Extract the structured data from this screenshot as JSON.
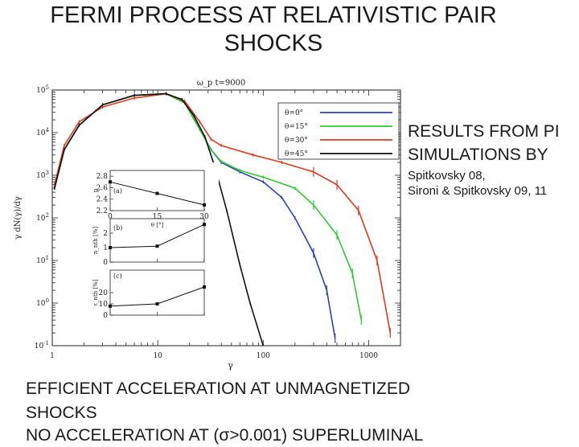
{
  "slide": {
    "title_line1": "FERMI PROCESS AT RELATIVISTIC PAIR",
    "title_line2": "SHOCKS",
    "side_line1": "RESULTS FROM PI",
    "side_line2": "SIMULATIONS BY",
    "side_line3": "Spitkovsky 08,",
    "side_line4": "Sironi & Spitkovsky 09, 11",
    "bottom_line1": "EFFICIENT ACCELERATION AT UNMAGNETIZED",
    "bottom_line2": "SHOCKS",
    "bottom_line3": "NO ACCELERATION AT (σ>0.001) SUPERLUMINAL"
  },
  "chart_data": [
    {
      "type": "line",
      "title": "ω_p t=9000",
      "xlabel": "γ",
      "ylabel": "γ dN(γ)/dγ",
      "xscale": "log",
      "yscale": "log",
      "xlim": [
        1,
        2000
      ],
      "ylim": [
        0.1,
        100000
      ],
      "x_ticks": [
        "1",
        "10",
        "100",
        "1000"
      ],
      "y_ticks": [
        "10^-1",
        "10^0",
        "10^1",
        "10^2",
        "10^3",
        "10^4",
        "10^5"
      ],
      "legend_position": "top-right",
      "series": [
        {
          "name": "θ=0°",
          "color": "#2b3fbf",
          "points": [
            [
              1.05,
              500
            ],
            [
              1.3,
              4000
            ],
            [
              1.8,
              15000
            ],
            [
              3,
              45000
            ],
            [
              6,
              75000
            ],
            [
              12,
              82000
            ],
            [
              18,
              50000
            ],
            [
              25,
              12000
            ],
            [
              32,
              4000
            ],
            [
              40,
              2000
            ],
            [
              60,
              1200
            ],
            [
              100,
              700
            ],
            [
              150,
              300
            ],
            [
              200,
              100
            ],
            [
              300,
              15
            ],
            [
              400,
              2
            ],
            [
              480,
              0.15
            ]
          ]
        },
        {
          "name": "θ=15°",
          "color": "#2ec92e",
          "points": [
            [
              1.05,
              500
            ],
            [
              1.3,
              4000
            ],
            [
              1.8,
              15000
            ],
            [
              3,
              45000
            ],
            [
              6,
              75000
            ],
            [
              12,
              82000
            ],
            [
              18,
              50000
            ],
            [
              25,
              12000
            ],
            [
              32,
              4000
            ],
            [
              40,
              2100
            ],
            [
              60,
              1300
            ],
            [
              100,
              900
            ],
            [
              200,
              500
            ],
            [
              300,
              200
            ],
            [
              500,
              40
            ],
            [
              700,
              5
            ],
            [
              850,
              0.4
            ]
          ]
        },
        {
          "name": "θ=30°",
          "color": "#e03a1c",
          "points": [
            [
              1.05,
              600
            ],
            [
              1.3,
              5000
            ],
            [
              1.8,
              18000
            ],
            [
              3,
              40000
            ],
            [
              6,
              65000
            ],
            [
              12,
              82000
            ],
            [
              18,
              55000
            ],
            [
              25,
              18000
            ],
            [
              32,
              7000
            ],
            [
              40,
              5000
            ],
            [
              80,
              3000
            ],
            [
              150,
              2000
            ],
            [
              300,
              1200
            ],
            [
              500,
              600
            ],
            [
              800,
              150
            ],
            [
              1200,
              10
            ],
            [
              1600,
              0.2
            ]
          ]
        },
        {
          "name": "θ=45°",
          "color": "#111111",
          "points": [
            [
              1.05,
              500
            ],
            [
              1.3,
              4000
            ],
            [
              1.8,
              15000
            ],
            [
              3,
              45000
            ],
            [
              6,
              75000
            ],
            [
              12,
              82000
            ],
            [
              17,
              60000
            ],
            [
              22,
              25000
            ],
            [
              28,
              8000
            ],
            [
              35,
              1500
            ],
            [
              45,
              150
            ],
            [
              60,
              8
            ],
            [
              75,
              1
            ],
            [
              100,
              0.1
            ]
          ]
        }
      ]
    },
    {
      "type": "line",
      "panel": "(a)",
      "xlabel": "θ [°]",
      "ylabel": "p",
      "x": [
        0,
        15,
        30
      ],
      "values": [
        2.7,
        2.5,
        2.3
      ],
      "xlim": [
        0,
        30
      ],
      "ylim": [
        2.2,
        2.9
      ],
      "x_ticks": [
        "0",
        "15",
        "30"
      ],
      "y_ticks": [
        "2.2",
        "2.4",
        "2.6",
        "2.8"
      ]
    },
    {
      "type": "line",
      "panel": "(b)",
      "ylabel": "n_nth [%]",
      "x": [
        0,
        15,
        30
      ],
      "values": [
        1.0,
        1.1,
        2.6
      ],
      "xlim": [
        0,
        30
      ],
      "ylim": [
        0,
        3
      ],
      "y_ticks": [
        "0",
        "1",
        "2"
      ]
    },
    {
      "type": "line",
      "panel": "(c)",
      "ylabel": "ε_nth [%]",
      "x": [
        0,
        15,
        30
      ],
      "values": [
        8,
        10,
        25
      ],
      "xlim": [
        0,
        30
      ],
      "ylim": [
        0,
        40
      ],
      "y_ticks": [
        "0",
        "10",
        "20"
      ]
    }
  ]
}
